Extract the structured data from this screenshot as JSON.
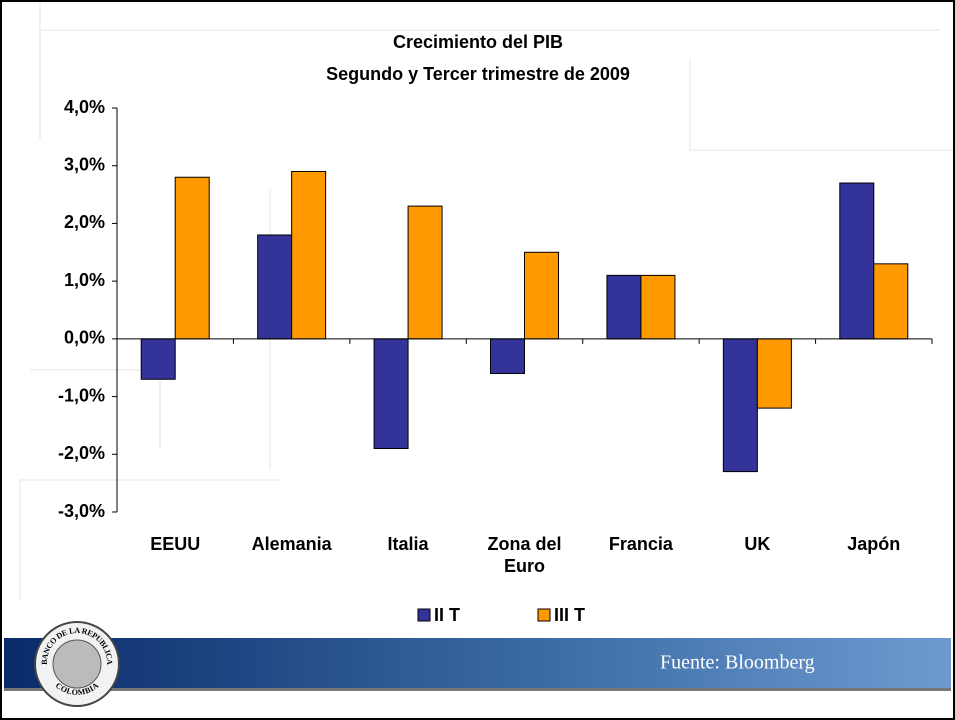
{
  "chart_data": {
    "type": "bar",
    "title": "Crecimiento del PIB",
    "subtitle": "Segundo y Tercer trimestre de 2009",
    "categories": [
      "EEUU",
      "Alemania",
      "Italia",
      "Zona del Euro",
      "Francia",
      "UK",
      "Japón"
    ],
    "series": [
      {
        "name": "II T",
        "color": "#333399",
        "values": [
          -0.7,
          1.8,
          -1.9,
          -0.6,
          1.1,
          -2.3,
          2.7
        ]
      },
      {
        "name": "III T",
        "color": "#FF9900",
        "values": [
          2.8,
          2.9,
          2.3,
          1.5,
          1.1,
          -1.2,
          1.3
        ]
      }
    ],
    "ylim": [
      -3,
      4
    ],
    "yticks": [
      {
        "value": 4,
        "label": "4,0%"
      },
      {
        "value": 3,
        "label": "3,0%"
      },
      {
        "value": 2,
        "label": "2,0%"
      },
      {
        "value": 1,
        "label": "1,0%"
      },
      {
        "value": 0,
        "label": "0,0%"
      },
      {
        "value": -1,
        "label": "-1,0%"
      },
      {
        "value": -2,
        "label": "-2,0%"
      },
      {
        "value": -3,
        "label": "-3,0%"
      }
    ],
    "legend": "bottom",
    "source": "Fuente: Bloomberg",
    "logo_text": [
      "BANCO DE LA REPUBLICA",
      "COLOMBIA"
    ]
  }
}
